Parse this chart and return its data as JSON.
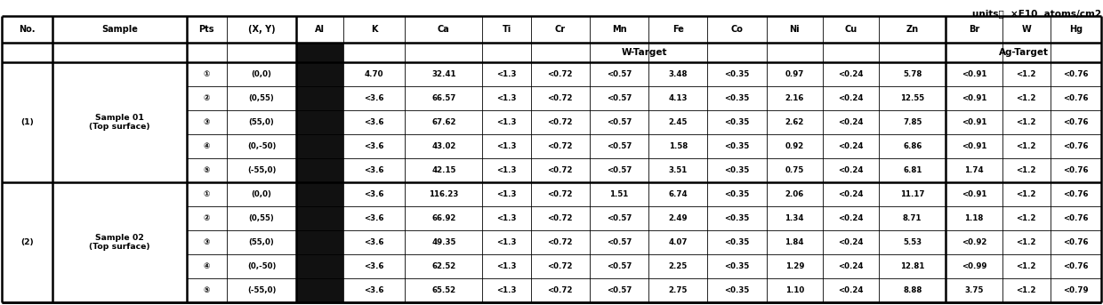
{
  "units_text": "units；  ×E10  atoms/cm2",
  "columns": [
    "No.",
    "Sample",
    "Pts",
    "(X, Y)",
    "Al",
    "K",
    "Ca",
    "Ti",
    "Cr",
    "Mn",
    "Fe",
    "Co",
    "Ni",
    "Cu",
    "Zn",
    "Br",
    "W",
    "Hg"
  ],
  "wtarget_label": "W-Target",
  "agtarget_label": "Ag-Target",
  "rows": [
    [
      "①",
      "(0,0)",
      "4.70",
      "32.41",
      "<1.3",
      "<0.72",
      "<0.57",
      "3.48",
      "<0.35",
      "0.97",
      "<0.24",
      "5.78",
      "<0.91",
      "<1.2",
      "<0.76"
    ],
    [
      "②",
      "(0,55)",
      "<3.6",
      "66.57",
      "<1.3",
      "<0.72",
      "<0.57",
      "4.13",
      "<0.35",
      "2.16",
      "<0.24",
      "12.55",
      "<0.91",
      "<1.2",
      "<0.76"
    ],
    [
      "③",
      "(55,0)",
      "<3.6",
      "67.62",
      "<1.3",
      "<0.72",
      "<0.57",
      "2.45",
      "<0.35",
      "2.62",
      "<0.24",
      "7.85",
      "<0.91",
      "<1.2",
      "<0.76"
    ],
    [
      "④",
      "(0,-50)",
      "<3.6",
      "43.02",
      "<1.3",
      "<0.72",
      "<0.57",
      "1.58",
      "<0.35",
      "0.92",
      "<0.24",
      "6.86",
      "<0.91",
      "<1.2",
      "<0.76"
    ],
    [
      "⑤",
      "(-55,0)",
      "<3.6",
      "42.15",
      "<1.3",
      "<0.72",
      "<0.57",
      "3.51",
      "<0.35",
      "0.75",
      "<0.24",
      "6.81",
      "1.74",
      "<1.2",
      "<0.76"
    ],
    [
      "①",
      "(0,0)",
      "<3.6",
      "116.23",
      "<1.3",
      "<0.72",
      "1.51",
      "6.74",
      "<0.35",
      "2.06",
      "<0.24",
      "11.17",
      "<0.91",
      "<1.2",
      "<0.76"
    ],
    [
      "②",
      "(0,55)",
      "<3.6",
      "66.92",
      "<1.3",
      "<0.72",
      "<0.57",
      "2.49",
      "<0.35",
      "1.34",
      "<0.24",
      "8.71",
      "1.18",
      "<1.2",
      "<0.76"
    ],
    [
      "③",
      "(55,0)",
      "<3.6",
      "49.35",
      "<1.3",
      "<0.72",
      "<0.57",
      "4.07",
      "<0.35",
      "1.84",
      "<0.24",
      "5.53",
      "<0.92",
      "<1.2",
      "<0.76"
    ],
    [
      "④",
      "(0,-50)",
      "<3.6",
      "62.52",
      "<1.3",
      "<0.72",
      "<0.57",
      "2.25",
      "<0.35",
      "1.29",
      "<0.24",
      "12.81",
      "<0.99",
      "<1.2",
      "<0.76"
    ],
    [
      "⑤",
      "(-55,0)",
      "<3.6",
      "65.52",
      "<1.3",
      "<0.72",
      "<0.57",
      "2.75",
      "<0.35",
      "1.10",
      "<0.24",
      "8.88",
      "3.75",
      "<1.2",
      "<0.79"
    ]
  ],
  "sample1_label": "(1)",
  "sample2_label": "(2)",
  "sample1_name": "Sample 01\n(Top surface)",
  "sample2_name": "Sample 02\n(Top surface)",
  "al_col_bg": "#111111",
  "font_size": 6.2,
  "header_font_size": 7.0
}
